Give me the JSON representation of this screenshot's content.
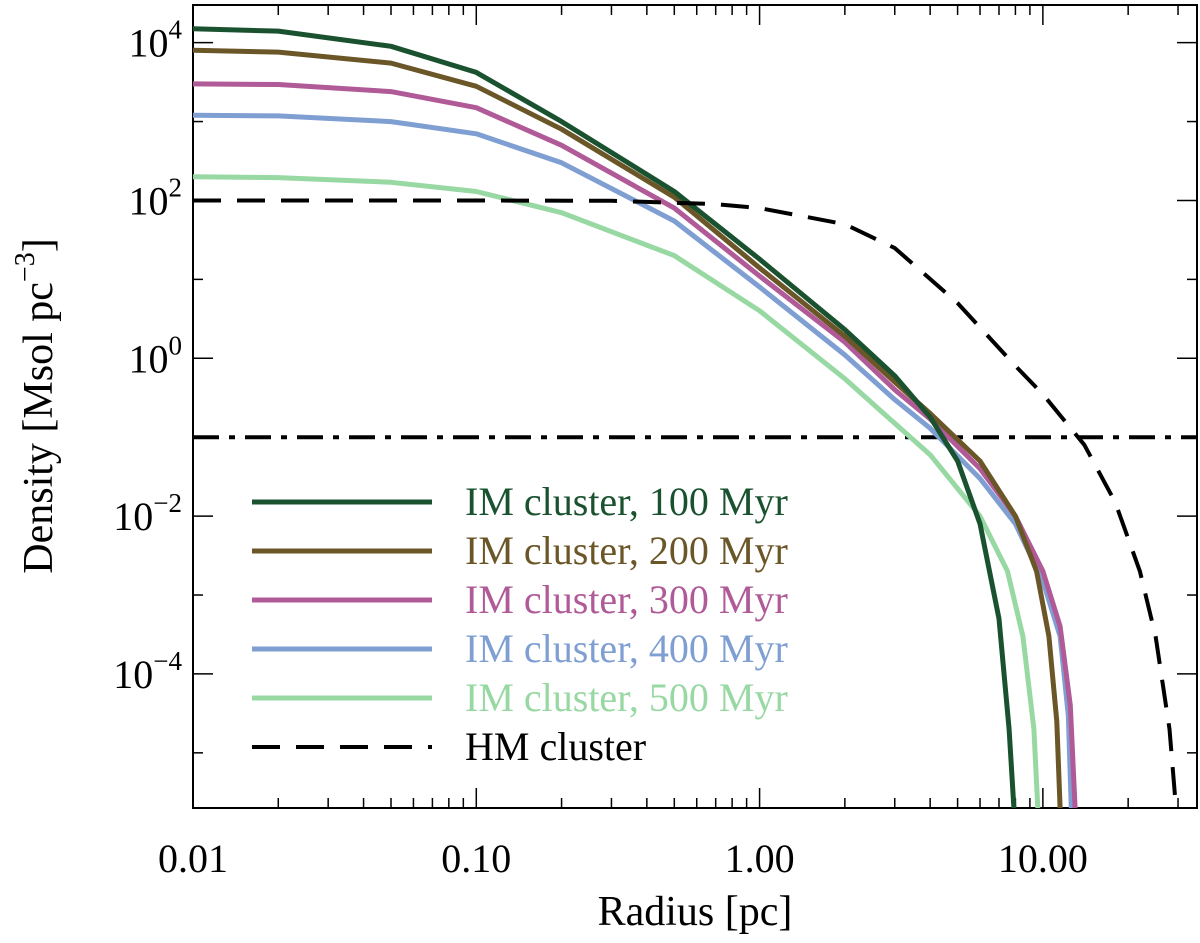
{
  "chart_data": {
    "type": "line",
    "xscale": "log",
    "yscale": "log",
    "xlim": [
      0.01,
      35
    ],
    "ylim": [
      2e-06,
      30000.0
    ],
    "xlabel": "Radius [pc]",
    "ylabel": "Density [Msol pc",
    "ylabel_sup": "−3",
    "ylabel_suffix": "]",
    "x_ticks": [
      {
        "value": 0.01,
        "label": "0.01"
      },
      {
        "value": 0.1,
        "label": "0.10"
      },
      {
        "value": 1,
        "label": "1.00"
      },
      {
        "value": 10,
        "label": "10.00"
      }
    ],
    "y_ticks": [
      {
        "value": 10000.0,
        "base": "10",
        "exp": "4"
      },
      {
        "value": 100.0,
        "base": "10",
        "exp": "2"
      },
      {
        "value": 1,
        "base": "10",
        "exp": "0"
      },
      {
        "value": 0.01,
        "base": "10",
        "exp": "−2"
      },
      {
        "value": 0.0001,
        "base": "10",
        "exp": "−4"
      }
    ],
    "series": [
      {
        "name": "IM cluster, 100 Myr",
        "color": "#1a5230",
        "style": "solid",
        "points": [
          [
            0.01,
            15000
          ],
          [
            0.02,
            14000
          ],
          [
            0.05,
            9000
          ],
          [
            0.1,
            4200
          ],
          [
            0.2,
            1000
          ],
          [
            0.5,
            130
          ],
          [
            1,
            18
          ],
          [
            2,
            2.3
          ],
          [
            3,
            0.6
          ],
          [
            4,
            0.18
          ],
          [
            5,
            0.05
          ],
          [
            6,
            0.008
          ],
          [
            7,
            0.0005
          ],
          [
            7.6,
            2e-05
          ],
          [
            7.9,
            2e-06
          ]
        ]
      },
      {
        "name": "IM cluster, 200 Myr",
        "color": "#6b5628",
        "style": "solid",
        "points": [
          [
            0.01,
            8000
          ],
          [
            0.02,
            7600
          ],
          [
            0.05,
            5500
          ],
          [
            0.1,
            2800
          ],
          [
            0.2,
            800
          ],
          [
            0.5,
            110
          ],
          [
            1,
            14
          ],
          [
            2,
            1.9
          ],
          [
            3,
            0.5
          ],
          [
            4,
            0.2
          ],
          [
            6,
            0.05
          ],
          [
            8,
            0.01
          ],
          [
            9.5,
            0.002
          ],
          [
            10.5,
            0.0003
          ],
          [
            11.2,
            2.5e-05
          ],
          [
            11.5,
            2e-06
          ]
        ]
      },
      {
        "name": "IM cluster, 300 Myr",
        "color": "#b05a98",
        "style": "solid",
        "points": [
          [
            0.01,
            3000
          ],
          [
            0.02,
            2950
          ],
          [
            0.05,
            2400
          ],
          [
            0.1,
            1500
          ],
          [
            0.2,
            500
          ],
          [
            0.5,
            80
          ],
          [
            1,
            11
          ],
          [
            2,
            1.6
          ],
          [
            3,
            0.4
          ],
          [
            4,
            0.17
          ],
          [
            6,
            0.04
          ],
          [
            8,
            0.01
          ],
          [
            10,
            0.002
          ],
          [
            11.5,
            0.0004
          ],
          [
            12.5,
            4e-05
          ],
          [
            13,
            2e-06
          ]
        ]
      },
      {
        "name": "IM cluster, 400 Myr",
        "color": "#7f9fd2",
        "style": "solid",
        "points": [
          [
            0.01,
            1200
          ],
          [
            0.02,
            1180
          ],
          [
            0.05,
            1000
          ],
          [
            0.1,
            700
          ],
          [
            0.2,
            300
          ],
          [
            0.5,
            55
          ],
          [
            1,
            8
          ],
          [
            2,
            1.1
          ],
          [
            3,
            0.3
          ],
          [
            4,
            0.13
          ],
          [
            6,
            0.03
          ],
          [
            8,
            0.008
          ],
          [
            10,
            0.0015
          ],
          [
            11.5,
            0.0003
          ],
          [
            12.3,
            3e-05
          ],
          [
            12.6,
            2e-06
          ]
        ]
      },
      {
        "name": "IM cluster, 500 Myr",
        "color": "#98d8a3",
        "style": "solid",
        "points": [
          [
            0.01,
            200
          ],
          [
            0.02,
            195
          ],
          [
            0.05,
            170
          ],
          [
            0.1,
            130
          ],
          [
            0.2,
            70
          ],
          [
            0.5,
            20
          ],
          [
            1,
            4
          ],
          [
            2,
            0.55
          ],
          [
            3,
            0.15
          ],
          [
            4,
            0.06
          ],
          [
            6,
            0.01
          ],
          [
            7.5,
            0.002
          ],
          [
            8.5,
            0.0003
          ],
          [
            9.3,
            2e-05
          ],
          [
            9.6,
            2e-06
          ]
        ]
      },
      {
        "name": "HM cluster",
        "color": "#000000",
        "style": "dashed",
        "points": [
          [
            0.01,
            100
          ],
          [
            0.1,
            100
          ],
          [
            0.3,
            99
          ],
          [
            0.7,
            90
          ],
          [
            1,
            80
          ],
          [
            2,
            50
          ],
          [
            3,
            25
          ],
          [
            5,
            5
          ],
          [
            8,
            0.8
          ],
          [
            10,
            0.35
          ],
          [
            14,
            0.08
          ],
          [
            18,
            0.015
          ],
          [
            22,
            0.002
          ],
          [
            25,
            0.0003
          ],
          [
            28,
            2e-05
          ],
          [
            29.5,
            2e-06
          ]
        ]
      }
    ],
    "reference_lines": [
      {
        "type": "hline",
        "y": 0.1,
        "style": "dash-dot",
        "color": "#000000"
      }
    ],
    "legend": {
      "position": "bottom-left",
      "entries": [
        {
          "label": "IM cluster, 100 Myr",
          "color": "#1a5230",
          "style": "solid"
        },
        {
          "label": "IM cluster, 200 Myr",
          "color": "#6b5628",
          "style": "solid"
        },
        {
          "label": "IM cluster, 300 Myr",
          "color": "#b05a98",
          "style": "solid"
        },
        {
          "label": "IM cluster, 400 Myr",
          "color": "#7f9fd2",
          "style": "solid"
        },
        {
          "label": "IM cluster, 500 Myr",
          "color": "#98d8a3",
          "style": "solid"
        },
        {
          "label": "HM cluster",
          "color": "#000000",
          "style": "dashed"
        }
      ]
    }
  }
}
